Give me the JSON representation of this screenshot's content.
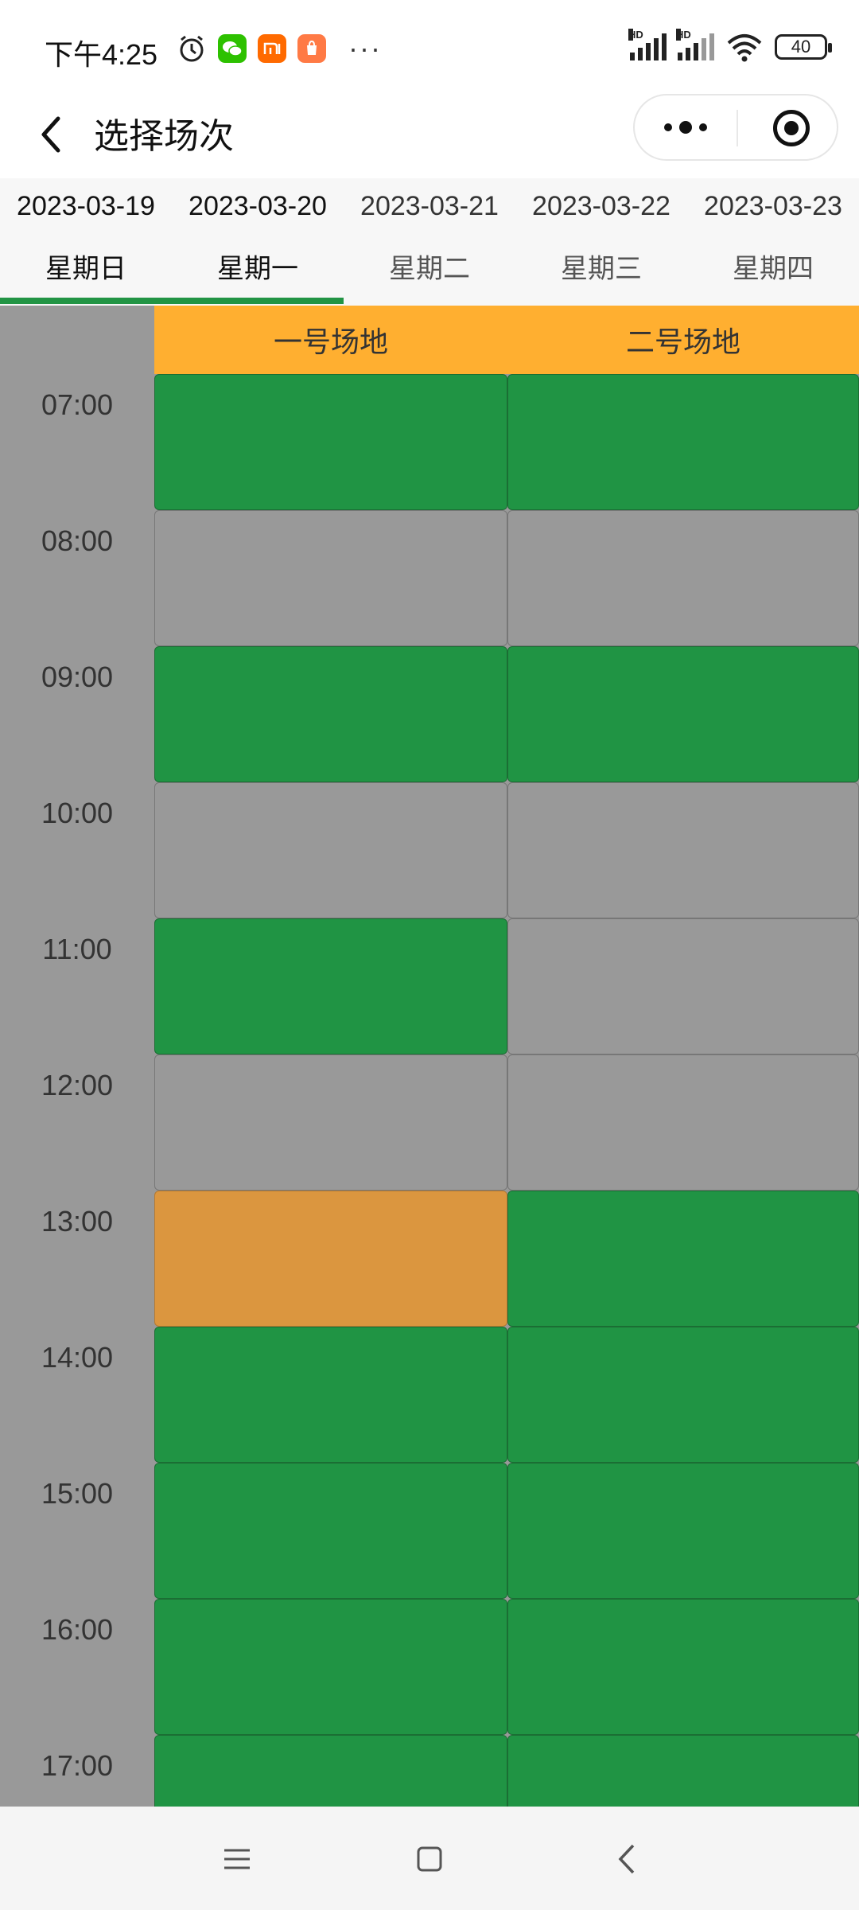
{
  "status_bar": {
    "time": "下午4:25",
    "battery": "40",
    "signal_label": "HD"
  },
  "nav": {
    "title": "选择场次"
  },
  "date_tabs": [
    {
      "date": "2023-03-19",
      "weekday": "星期日",
      "active": true
    },
    {
      "date": "2023-03-20",
      "weekday": "星期一",
      "active": true
    },
    {
      "date": "2023-03-21",
      "weekday": "星期二",
      "active": false
    },
    {
      "date": "2023-03-22",
      "weekday": "星期三",
      "active": false
    },
    {
      "date": "2023-03-23",
      "weekday": "星期四",
      "active": false
    }
  ],
  "courts": [
    "一号场地",
    "二号场地"
  ],
  "times": [
    "07:00",
    "08:00",
    "09:00",
    "10:00",
    "11:00",
    "12:00",
    "13:00",
    "14:00",
    "15:00",
    "16:00",
    "17:00"
  ],
  "slots": [
    [
      "available",
      "available"
    ],
    [
      "booked",
      "booked"
    ],
    [
      "available",
      "available"
    ],
    [
      "booked",
      "booked"
    ],
    [
      "available",
      "booked"
    ],
    [
      "booked",
      "booked"
    ],
    [
      "selected",
      "available"
    ],
    [
      "available",
      "available"
    ],
    [
      "available",
      "available"
    ],
    [
      "available",
      "available"
    ],
    [
      "available",
      "available"
    ]
  ],
  "colors": {
    "available": "#209444",
    "booked": "#999999",
    "selected": "#db963f",
    "header": "#ffaf30",
    "indicator": "#229444"
  }
}
